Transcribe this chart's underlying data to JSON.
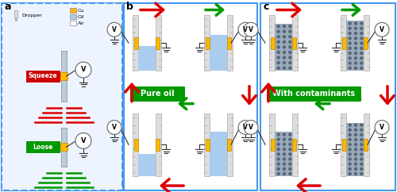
{
  "panel_a_label": "a",
  "panel_b_label": "b",
  "panel_c_label": "c",
  "bg_color": "#ffffff",
  "panel_border_color": "#4499ee",
  "dashed_border_color": "#4499ee",
  "legend_cu": "Cu",
  "legend_oil": "Oil",
  "legend_air": "Air",
  "cu_color": "#FFB800",
  "oil_color": "#AACCEE",
  "contaminant_bg": "#8899BB",
  "squeeze_label": "Squeeze",
  "loose_label": "Loose",
  "squeeze_bg": "#cc0000",
  "loose_bg": "#009900",
  "pure_oil_label": "Pure oil",
  "contaminants_label": "With contaminants",
  "green_label_bg": "#009900",
  "red_arrow": "#dd0000",
  "green_arrow": "#009900",
  "dropper_label": "Dropper",
  "rail_color": "#dddddd",
  "rail_border": "#aaaaaa",
  "wire_color": "#333333",
  "vm_border": "#666666"
}
